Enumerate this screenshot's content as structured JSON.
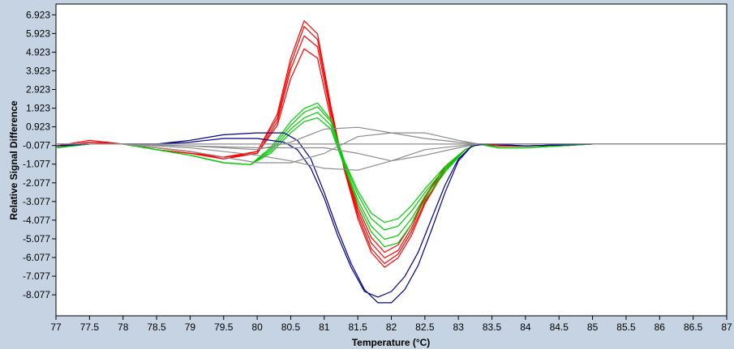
{
  "chart_data": {
    "type": "line",
    "title": "",
    "xlabel": "Temperature (°C)",
    "ylabel": "Relative Signal Difference",
    "xlim": [
      77,
      87
    ],
    "ylim": [
      -9.2,
      7.5
    ],
    "x_ticks": [
      "77",
      "77.5",
      "78",
      "78.5",
      "79",
      "79.5",
      "80",
      "80.5",
      "81",
      "81.5",
      "82",
      "82.5",
      "83",
      "83.5",
      "84",
      "84.5",
      "85",
      "85.5",
      "86",
      "86.5",
      "87"
    ],
    "y_ticks": [
      "6.923",
      "5.923",
      "4.923",
      "3.923",
      "2.923",
      "1.923",
      "0.923",
      "-0.077",
      "-1.077",
      "-2.077",
      "-3.077",
      "-4.077",
      "-5.077",
      "-6.077",
      "-7.077",
      "-8.077"
    ],
    "grid": false,
    "legend": "none",
    "series": [
      {
        "color": "#ff0000",
        "x": [
          77,
          77.5,
          78,
          78.5,
          79,
          79.5,
          80,
          80.3,
          80.5,
          80.7,
          80.9,
          81.1,
          81.3,
          81.5,
          81.7,
          81.9,
          82.1,
          82.3,
          82.5,
          82.8,
          83.1,
          83.3,
          83.6,
          84,
          85,
          86,
          87
        ],
        "y": [
          -0.2,
          0.1,
          0.0,
          -0.2,
          -0.4,
          -0.8,
          -0.4,
          1.6,
          4.6,
          6.6,
          5.9,
          2.0,
          -1.4,
          -4.0,
          -5.8,
          -6.6,
          -6.1,
          -4.9,
          -3.2,
          -1.4,
          -0.3,
          0.0,
          -0.1,
          -0.1,
          0.0,
          0.0,
          0.0
        ]
      },
      {
        "color": "#ff0000",
        "x": [
          77,
          77.5,
          78,
          78.5,
          79,
          79.5,
          80,
          80.3,
          80.5,
          80.7,
          80.9,
          81.1,
          81.3,
          81.5,
          81.7,
          81.9,
          82.1,
          82.3,
          82.5,
          82.8,
          83.1,
          83.3,
          83.6,
          84,
          85,
          86,
          87
        ],
        "y": [
          -0.1,
          0.2,
          0.0,
          -0.2,
          -0.4,
          -0.7,
          -0.4,
          1.4,
          4.3,
          6.3,
          5.6,
          1.8,
          -1.3,
          -3.8,
          -5.6,
          -6.4,
          -5.9,
          -4.7,
          -3.1,
          -1.3,
          -0.3,
          0.0,
          -0.1,
          -0.1,
          0.0,
          0.0,
          0.0
        ]
      },
      {
        "color": "#ff0000",
        "x": [
          77,
          77.5,
          78,
          78.5,
          79,
          79.5,
          80,
          80.3,
          80.5,
          80.7,
          80.9,
          81.1,
          81.3,
          81.5,
          81.7,
          81.9,
          82.1,
          82.3,
          82.5,
          82.8,
          83.1,
          83.3,
          83.6,
          84,
          85,
          86,
          87
        ],
        "y": [
          -0.1,
          0.1,
          0.0,
          -0.3,
          -0.5,
          -0.7,
          -0.5,
          1.2,
          4.0,
          5.8,
          5.2,
          1.6,
          -1.2,
          -3.6,
          -5.3,
          -6.1,
          -5.7,
          -4.5,
          -2.9,
          -1.2,
          -0.3,
          0.0,
          -0.1,
          -0.1,
          0.0,
          0.0,
          0.0
        ]
      },
      {
        "color": "#ff0000",
        "x": [
          77,
          77.5,
          78,
          78.5,
          79,
          79.5,
          80,
          80.3,
          80.5,
          80.7,
          80.9,
          81.1,
          81.3,
          81.5,
          81.7,
          81.9,
          82.1,
          82.3,
          82.5,
          82.8,
          83.1,
          83.3,
          83.6,
          84,
          85,
          86,
          87
        ],
        "y": [
          -0.2,
          0.1,
          0.0,
          -0.3,
          -0.5,
          -0.8,
          -0.5,
          1.0,
          3.5,
          5.1,
          4.6,
          1.3,
          -1.1,
          -3.4,
          -5.0,
          -5.8,
          -5.4,
          -4.3,
          -2.8,
          -1.2,
          -0.3,
          0.0,
          -0.1,
          -0.1,
          0.0,
          0.0,
          0.0
        ]
      },
      {
        "color": "#00cc00",
        "x": [
          77,
          77.5,
          78,
          78.5,
          79,
          79.5,
          79.9,
          80.2,
          80.5,
          80.7,
          80.9,
          81.1,
          81.3,
          81.5,
          81.7,
          81.9,
          82.1,
          82.3,
          82.5,
          82.8,
          83.1,
          83.3,
          83.6,
          84,
          85,
          86,
          87
        ],
        "y": [
          -0.2,
          0.0,
          0.0,
          -0.3,
          -0.6,
          -1.0,
          -1.1,
          -0.2,
          1.2,
          1.9,
          2.2,
          1.3,
          -0.9,
          -2.5,
          -3.7,
          -4.2,
          -4.0,
          -3.3,
          -2.4,
          -1.2,
          -0.3,
          0.0,
          -0.2,
          -0.2,
          0.0,
          0.0,
          0.0
        ]
      },
      {
        "color": "#00cc00",
        "x": [
          77,
          77.5,
          78,
          78.5,
          79,
          79.5,
          79.9,
          80.2,
          80.5,
          80.7,
          80.9,
          81.1,
          81.3,
          81.5,
          81.7,
          81.9,
          82.1,
          82.3,
          82.5,
          82.8,
          83.1,
          83.3,
          83.6,
          84,
          85,
          86,
          87
        ],
        "y": [
          -0.2,
          0.0,
          0.0,
          -0.3,
          -0.6,
          -1.0,
          -1.1,
          -0.3,
          1.0,
          1.7,
          2.0,
          1.2,
          -1.0,
          -2.7,
          -4.0,
          -4.6,
          -4.4,
          -3.6,
          -2.6,
          -1.3,
          -0.3,
          0.0,
          -0.2,
          -0.2,
          0.0,
          0.0,
          0.0
        ]
      },
      {
        "color": "#00cc00",
        "x": [
          77,
          77.5,
          78,
          78.5,
          79,
          79.5,
          79.9,
          80.2,
          80.5,
          80.7,
          80.9,
          81.1,
          81.3,
          81.5,
          81.7,
          81.9,
          82.1,
          82.3,
          82.5,
          82.8,
          83.1,
          83.3,
          83.6,
          84,
          85,
          86,
          87
        ],
        "y": [
          -0.2,
          0.0,
          0.0,
          -0.3,
          -0.6,
          -1.0,
          -1.1,
          -0.4,
          0.8,
          1.4,
          1.7,
          1.0,
          -1.1,
          -3.0,
          -4.4,
          -5.1,
          -4.9,
          -4.0,
          -2.8,
          -1.4,
          -0.3,
          0.0,
          -0.2,
          -0.2,
          0.0,
          0.0,
          0.0
        ]
      },
      {
        "color": "#00cc00",
        "x": [
          77,
          77.5,
          78,
          78.5,
          79,
          79.5,
          79.9,
          80.2,
          80.5,
          80.7,
          80.9,
          81.1,
          81.3,
          81.5,
          81.7,
          81.9,
          82.1,
          82.3,
          82.5,
          82.8,
          83.1,
          83.3,
          83.6,
          84,
          85,
          86,
          87
        ],
        "y": [
          -0.2,
          0.0,
          0.0,
          -0.3,
          -0.6,
          -1.0,
          -1.1,
          -0.5,
          0.6,
          1.2,
          1.4,
          0.8,
          -1.2,
          -3.2,
          -4.7,
          -5.5,
          -5.3,
          -4.3,
          -3.0,
          -1.5,
          -0.3,
          0.0,
          -0.2,
          -0.2,
          0.0,
          0.0,
          0.0
        ]
      },
      {
        "color": "#00008b",
        "x": [
          77,
          77.5,
          78,
          78.5,
          79,
          79.5,
          80,
          80.4,
          80.6,
          80.8,
          81,
          81.2,
          81.4,
          81.6,
          81.8,
          82,
          82.2,
          82.4,
          82.6,
          82.8,
          83,
          83.2,
          83.4,
          84,
          85,
          86,
          87
        ],
        "y": [
          -0.1,
          0.0,
          0.0,
          0.0,
          0.2,
          0.5,
          0.6,
          0.6,
          0.2,
          -0.8,
          -2.6,
          -4.6,
          -6.4,
          -7.8,
          -8.5,
          -8.5,
          -7.8,
          -6.5,
          -4.6,
          -2.6,
          -0.9,
          -0.1,
          0.0,
          -0.1,
          0.0,
          0.0,
          0.0
        ]
      },
      {
        "color": "#00008b",
        "x": [
          77,
          77.5,
          78,
          78.5,
          79,
          79.5,
          80,
          80.4,
          80.6,
          80.8,
          81,
          81.2,
          81.4,
          81.6,
          81.8,
          82,
          82.2,
          82.4,
          82.6,
          82.8,
          83,
          83.2,
          83.4,
          84,
          85,
          86,
          87
        ],
        "y": [
          -0.1,
          0.0,
          0.0,
          0.0,
          0.1,
          0.3,
          0.3,
          0.1,
          -0.3,
          -1.3,
          -2.9,
          -4.9,
          -6.6,
          -7.9,
          -8.2,
          -7.9,
          -7.1,
          -5.8,
          -4.0,
          -2.2,
          -0.8,
          -0.1,
          0.0,
          -0.1,
          0.0,
          0.0,
          0.0
        ]
      },
      {
        "color": "#8c8c8c",
        "x": [
          77,
          78,
          79,
          80,
          80.5,
          81,
          81.5,
          82,
          82.5,
          83,
          83.3,
          84,
          87
        ],
        "y": [
          0.0,
          0.0,
          -0.1,
          -0.3,
          0.1,
          0.8,
          0.9,
          0.6,
          0.6,
          0.2,
          0.0,
          0.0,
          0.0
        ]
      },
      {
        "color": "#8c8c8c",
        "x": [
          77,
          78,
          79,
          80,
          80.5,
          81,
          81.5,
          82,
          82.5,
          83,
          83.3,
          84,
          87
        ],
        "y": [
          0.0,
          0.0,
          -0.2,
          -0.6,
          -0.9,
          -1.3,
          -1.4,
          -0.9,
          -0.3,
          -0.1,
          0.0,
          0.0,
          0.0
        ]
      },
      {
        "color": "#8c8c8c",
        "x": [
          77,
          78,
          79,
          80,
          80.5,
          81,
          81.5,
          82,
          82.5,
          83,
          83.3,
          84,
          87
        ],
        "y": [
          0.0,
          0.0,
          -0.4,
          -1.0,
          -1.0,
          -0.5,
          0.4,
          0.6,
          0.3,
          0.1,
          0.0,
          0.0,
          0.0
        ]
      },
      {
        "color": "#8c8c8c",
        "x": [
          77,
          78,
          79,
          80,
          80.5,
          81,
          81.5,
          82,
          82.5,
          83,
          83.3,
          84,
          87
        ],
        "y": [
          0.0,
          0.0,
          -0.1,
          -0.2,
          -0.2,
          -0.2,
          -0.5,
          -0.9,
          -0.6,
          -0.2,
          0.0,
          0.0,
          0.0
        ]
      },
      {
        "color": "#8c8c8c",
        "x": [
          77,
          78,
          79,
          80,
          80.5,
          81,
          81.5,
          82,
          82.5,
          83,
          83.3,
          84,
          87
        ],
        "y": [
          0.0,
          0.0,
          0.0,
          0.0,
          0.0,
          0.0,
          0.0,
          0.0,
          0.0,
          0.0,
          0.0,
          0.0,
          0.0
        ]
      }
    ]
  }
}
